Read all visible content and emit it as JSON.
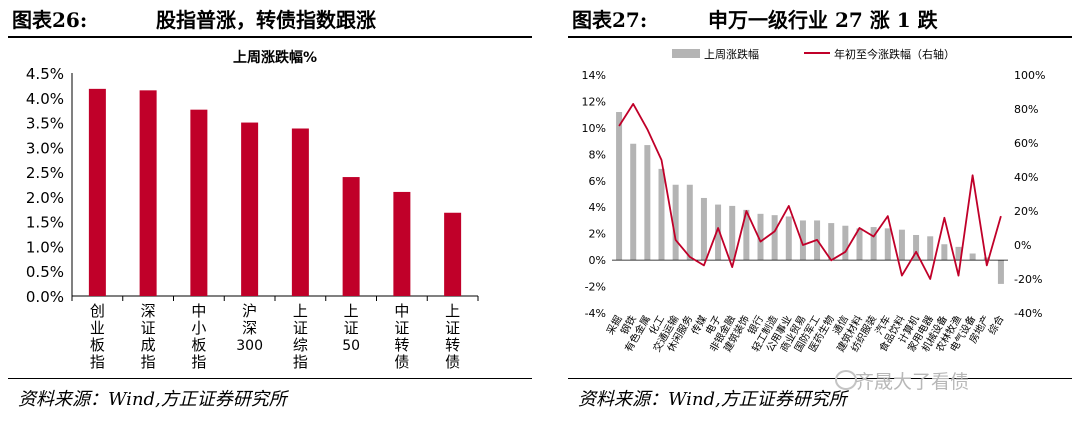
{
  "panel1": {
    "fig_label": "图表26:",
    "fig_title": "股指普涨，转债指数跟涨",
    "source": "资料来源：Wind,方正证券研究所"
  },
  "panel2": {
    "fig_label": "图表27:",
    "fig_title": "申万一级行业 27 涨 1 跌",
    "source": "资料来源：Wind,方正证券研究所"
  },
  "watermark": "齐晟大了看债",
  "chart_data": [
    {
      "type": "bar",
      "title": "上周涨跌幅%",
      "categories": [
        "创业板指",
        "深证成指",
        "中小板指",
        "沪深300",
        "上证综指",
        "上证50",
        "中证转债",
        "上证转债"
      ],
      "values": [
        4.18,
        4.15,
        3.76,
        3.5,
        3.38,
        2.4,
        2.1,
        1.68
      ],
      "ylim": [
        0,
        4.5
      ],
      "yticks": [
        "0.0%",
        "0.5%",
        "1.0%",
        "1.5%",
        "2.0%",
        "2.5%",
        "3.0%",
        "3.5%",
        "4.0%",
        "4.5%"
      ],
      "color": "#c00029",
      "xlabel": "",
      "ylabel": ""
    },
    {
      "type": "bar+line",
      "title": "",
      "legend": [
        "上周涨跌幅",
        "年初至今涨跌幅（右轴）"
      ],
      "legend_position": "top",
      "categories": [
        "采掘",
        "钢铁",
        "有色金属",
        "化工",
        "交通运输",
        "休闲服务",
        "传媒",
        "电子",
        "非银金融",
        "建筑装饰",
        "银行",
        "轻工制造",
        "公用事业",
        "商业贸易",
        "国防军工",
        "医药生物",
        "通信",
        "建筑材料",
        "纺织服装",
        "汽车",
        "食品饮料",
        "计算机",
        "家用电器",
        "机械设备",
        "农林牧渔",
        "电气设备",
        "房地产",
        "综合"
      ],
      "series": [
        {
          "name": "上周涨跌幅",
          "axis": "left",
          "color": "#b4b4b4",
          "values": [
            11.2,
            8.8,
            8.7,
            6.9,
            5.7,
            5.7,
            4.7,
            4.2,
            4.1,
            3.8,
            3.5,
            3.4,
            3.3,
            3.0,
            3.0,
            2.8,
            2.6,
            2.4,
            2.5,
            2.4,
            2.3,
            1.9,
            1.8,
            1.2,
            1.0,
            0.5,
            0.2,
            -1.8
          ]
        },
        {
          "name": "年初至今涨跌幅（右轴）",
          "axis": "right",
          "color": "#c00029",
          "values": [
            70,
            83,
            68,
            50,
            3,
            -7,
            -12,
            10,
            -13,
            20,
            2,
            8,
            23,
            0,
            3,
            -9,
            -4,
            10,
            5,
            17,
            -18,
            -4,
            -20,
            16,
            -18,
            41,
            -12,
            17
          ]
        }
      ],
      "ylim_left": [
        -4,
        14
      ],
      "yticks_left": [
        "-4%",
        "-2%",
        "0%",
        "2%",
        "4%",
        "6%",
        "8%",
        "10%",
        "12%",
        "14%"
      ],
      "ylim_right": [
        -40,
        100
      ],
      "yticks_right": [
        "-40%",
        "-20%",
        "0%",
        "20%",
        "40%",
        "60%",
        "80%",
        "100%"
      ]
    }
  ]
}
